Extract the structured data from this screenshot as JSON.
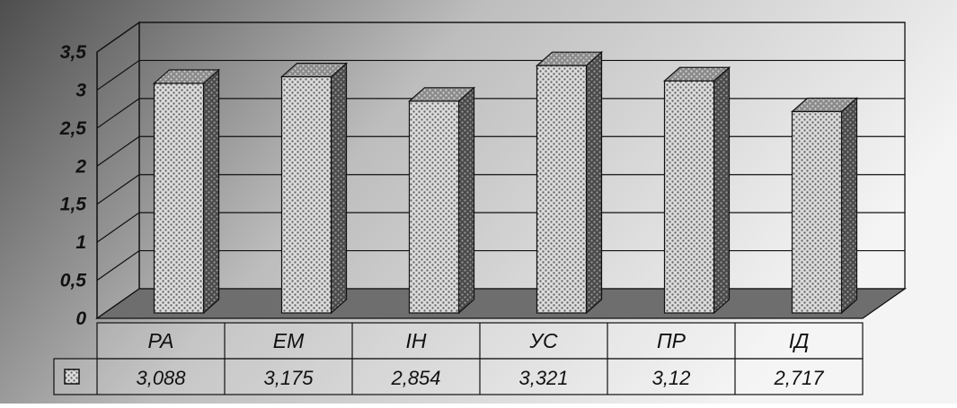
{
  "chart_data": {
    "type": "bar",
    "categories": [
      "РА",
      "ЕМ",
      "ІН",
      "УС",
      "ПР",
      "ІД"
    ],
    "series": [
      {
        "values": [
          3.088,
          3.175,
          2.854,
          3.321,
          3.12,
          2.717
        ]
      }
    ],
    "value_labels": [
      "3,088",
      "3,175",
      "2,854",
      "3,321",
      "3,12",
      "2,717"
    ],
    "y_ticks": [
      "0",
      "0,5",
      "1",
      "1,5",
      "2",
      "2,5",
      "3",
      "3,5"
    ],
    "ylim": [
      0,
      3.5
    ],
    "grid": true,
    "bar_style": "3d-dotted",
    "data_table": true,
    "legend": "data-table-left",
    "colors": {
      "background_dark": "#5a5a5a",
      "background_light": "#f2f2f2",
      "bar_front": "#d8d8d8",
      "bar_side": "#555555",
      "bar_top": "#7a7a7a",
      "floor": "#6e6e6e"
    }
  }
}
